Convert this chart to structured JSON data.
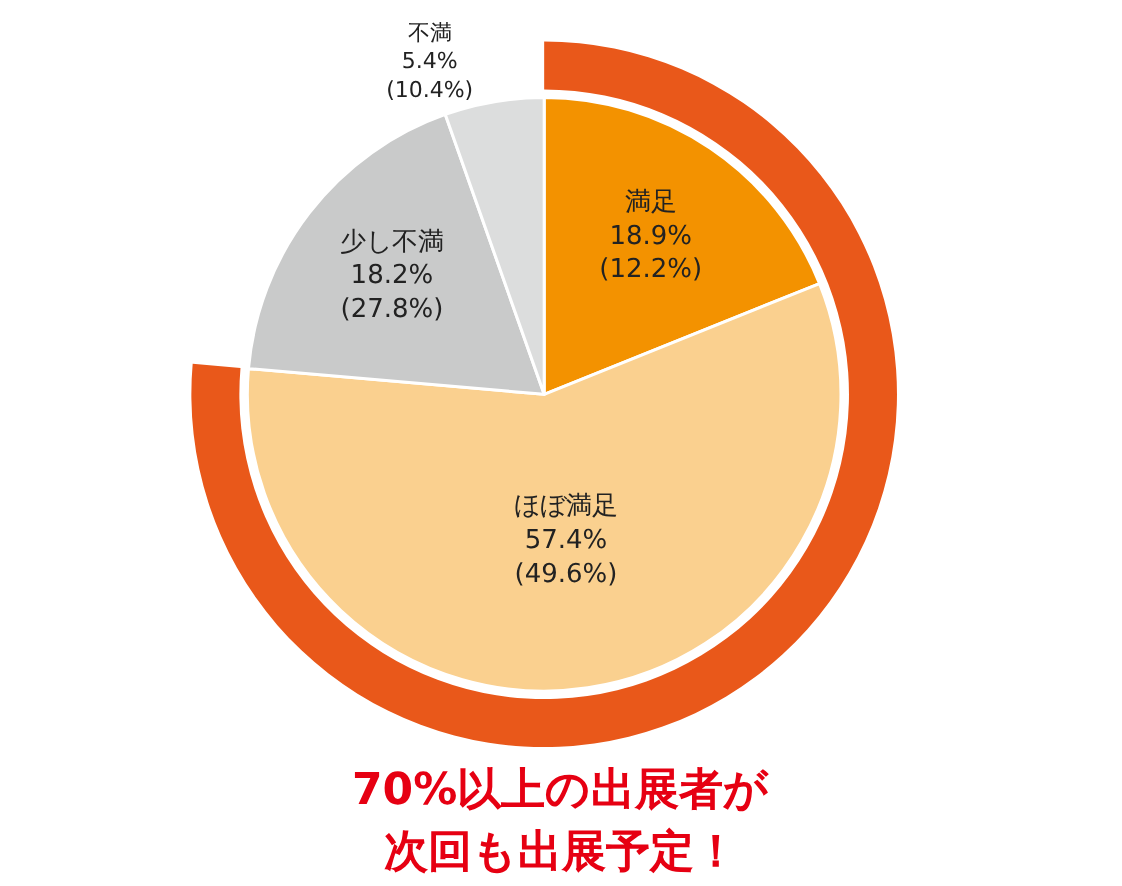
{
  "chart_data": {
    "type": "pie",
    "title": "70%以上の出展者が",
    "subtitle": "次回も出展予定！",
    "categories": [
      "満足",
      "ほぼ満足",
      "少し不満",
      "不満"
    ],
    "values": [
      18.9,
      57.4,
      18.2,
      5.4
    ],
    "colors": [
      "#f39200",
      "#fad08f",
      "#c9caca",
      "#dcdddd"
    ],
    "value_labels": [
      "18.9%\n(12.2%)",
      "57.4%\n(49.6%)",
      "18.2%\n(27.8%)",
      "5.4%\n(10.4%)"
    ],
    "legend": false
  }
}
